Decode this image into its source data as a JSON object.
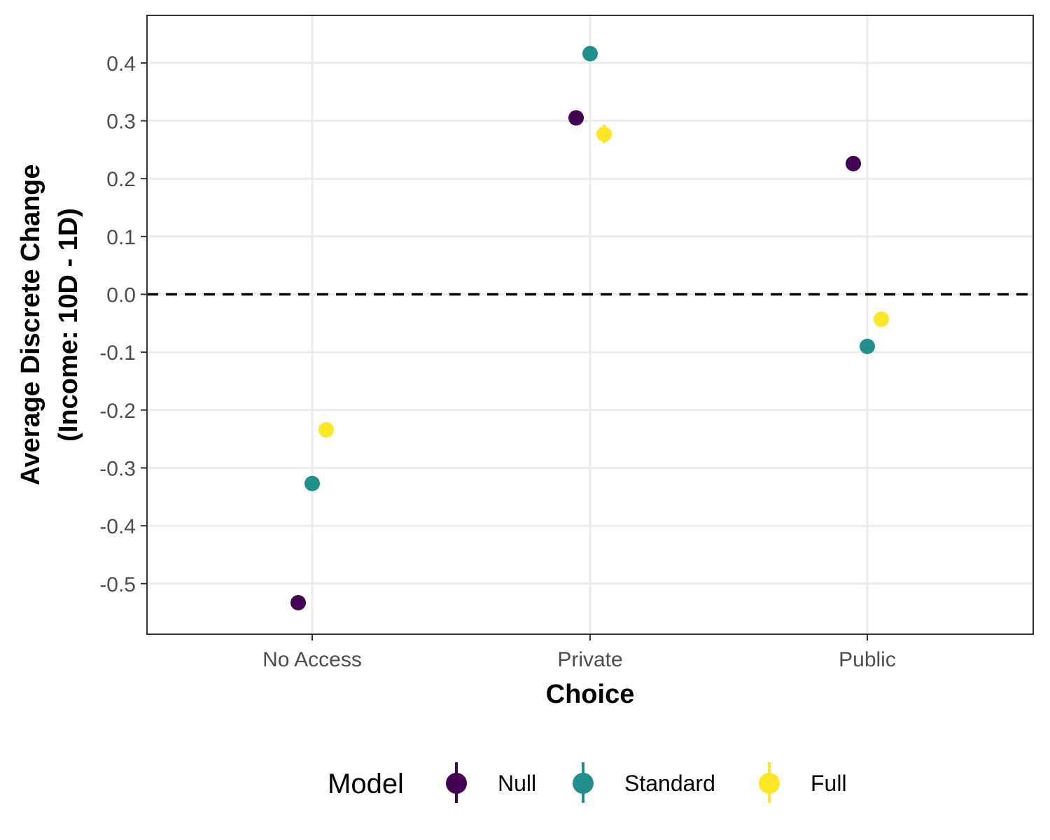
{
  "chart_data": {
    "type": "scatter",
    "title": "",
    "xlabel": "Choice",
    "ylabel_line1": "Average Discrete Change",
    "ylabel_line2": "(Income: 10D - 1D)",
    "categories": [
      "No Access",
      "Private",
      "Public"
    ],
    "ylim": [
      -0.58,
      0.49
    ],
    "yticks": [
      0.4,
      0.3,
      0.2,
      0.1,
      0.0,
      -0.1,
      -0.2,
      -0.3,
      -0.4,
      -0.5
    ],
    "ytick_labels": [
      "0.4",
      "0.3",
      "0.2",
      "0.1",
      "0.0",
      "-0.1",
      "-0.2",
      "-0.3",
      "-0.4",
      "-0.5"
    ],
    "reference_line": 0.0,
    "grid": true,
    "legend": {
      "title": "Model",
      "placement": "bottom"
    },
    "series": [
      {
        "name": "Null",
        "color": "#440154",
        "values": [
          -0.533,
          0.305,
          0.226
        ],
        "err": [
          0.006,
          0.006,
          0.006
        ]
      },
      {
        "name": "Standard",
        "color": "#21908C",
        "values": [
          -0.327,
          0.416,
          -0.09
        ],
        "err": [
          0.006,
          0.006,
          0.006
        ]
      },
      {
        "name": "Full",
        "color": "#FDE725",
        "values": [
          -0.234,
          0.277,
          -0.043
        ],
        "err": [
          0.006,
          0.016,
          0.006
        ]
      }
    ]
  }
}
